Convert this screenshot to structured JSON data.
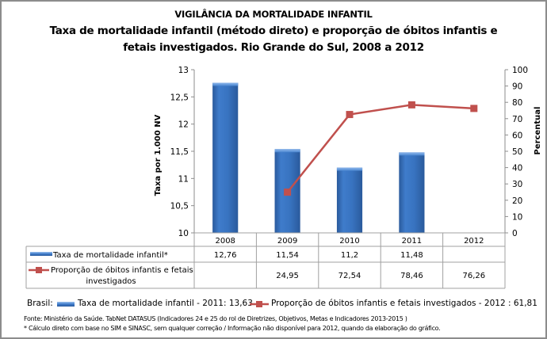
{
  "header": {
    "supertitle": "VIGILÂNCIA DA MORTALIDADE INFANTIL",
    "title_line1": "Taxa de mortalidade infantil (método direto) e proporção de óbitos infantis e",
    "title_line2": "fetais investigados. Rio Grande do Sul, 2008 a 2012"
  },
  "chart_data": {
    "type": "bar+line",
    "categories": [
      "2008",
      "2009",
      "2010",
      "2011",
      "2012"
    ],
    "series": [
      {
        "name": "Taxa de mortalidade infantil*",
        "type": "bar",
        "axis": "left",
        "color": "#3a73c0",
        "values": [
          12.76,
          11.54,
          11.2,
          11.48,
          null
        ],
        "labels": [
          "12,76",
          "11,54",
          "11,2",
          "11,48",
          ""
        ]
      },
      {
        "name": "Proporção de óbitos infantis e fetais investigados",
        "name_line1": "Proporção de óbitos infantis e fetais",
        "name_line2": "investigados",
        "type": "line",
        "axis": "right",
        "color": "#c0504d",
        "values": [
          null,
          24.95,
          72.54,
          78.46,
          76.26
        ],
        "labels": [
          "",
          "24,95",
          "72,54",
          "78,46",
          "76,26"
        ]
      }
    ],
    "ylabel": "Taxa  por 1.000 NV",
    "y2label": "Percentual",
    "ylim": [
      10,
      13
    ],
    "y2lim": [
      0,
      100
    ],
    "yticks": [
      "10",
      "10,5",
      "11",
      "11,5",
      "12",
      "12,5",
      "13"
    ],
    "y2ticks": [
      "0",
      "10",
      "20",
      "30",
      "40",
      "50",
      "60",
      "70",
      "80",
      "90",
      "100"
    ],
    "grid": false,
    "data_table": true
  },
  "brasil": {
    "label": "Brasil:",
    "item1": "Taxa de mortalidade infantil - 2011: 13,63",
    "item2": "Proporção de óbitos infantis e fetais investigados - 2012 : 61,81"
  },
  "footer": {
    "source": "Fonte: Ministério da Saúde. TabNet DATASUS (Indicadores  24 e 25 do rol de Diretrizes, Objetivos, Metas e Indicadores 2013-2015 )",
    "note": "* Cálculo direto com base no SIM e SINASC, sem qualquer correção  / Informação não  disponível  para 2012,  quando da elaboração do gráfico."
  }
}
